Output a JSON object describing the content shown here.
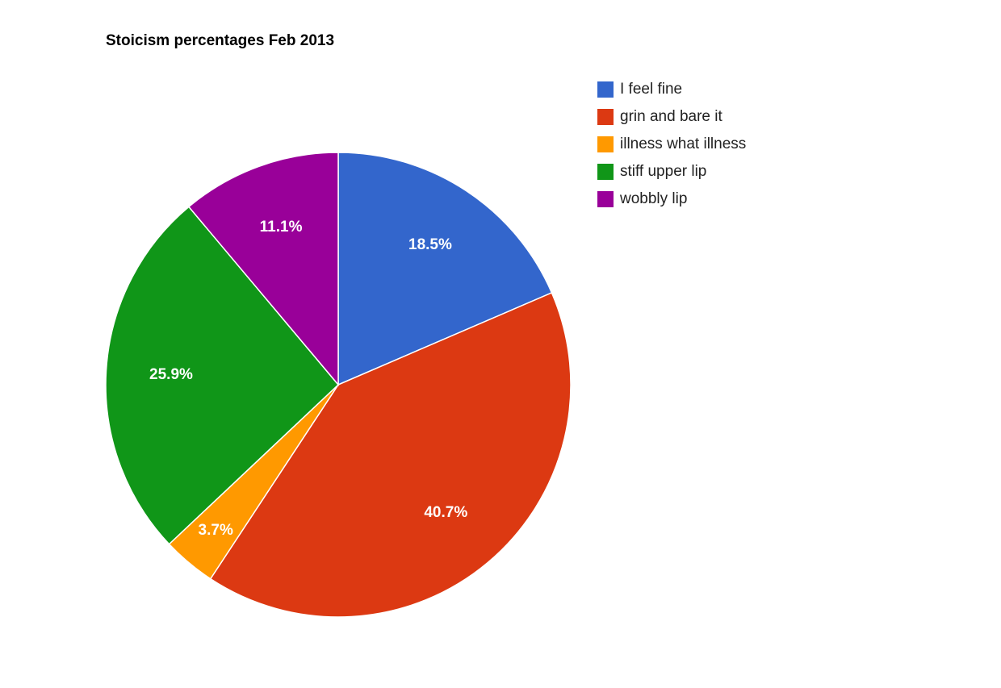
{
  "chart_data": {
    "type": "pie",
    "title": "Stoicism percentages Feb 2013",
    "categories": [
      "I feel fine",
      "grin and bare it",
      "illness what illness",
      "stiff upper lip",
      "wobbly lip"
    ],
    "values": [
      18.5,
      40.7,
      3.7,
      25.9,
      11.1
    ],
    "labels": [
      "18.5%",
      "40.7%",
      "3.7%",
      "25.9%",
      "11.1%"
    ],
    "colors": [
      "#3366cc",
      "#dc3912",
      "#ff9900",
      "#109618",
      "#990099"
    ],
    "legend_position": "right"
  }
}
